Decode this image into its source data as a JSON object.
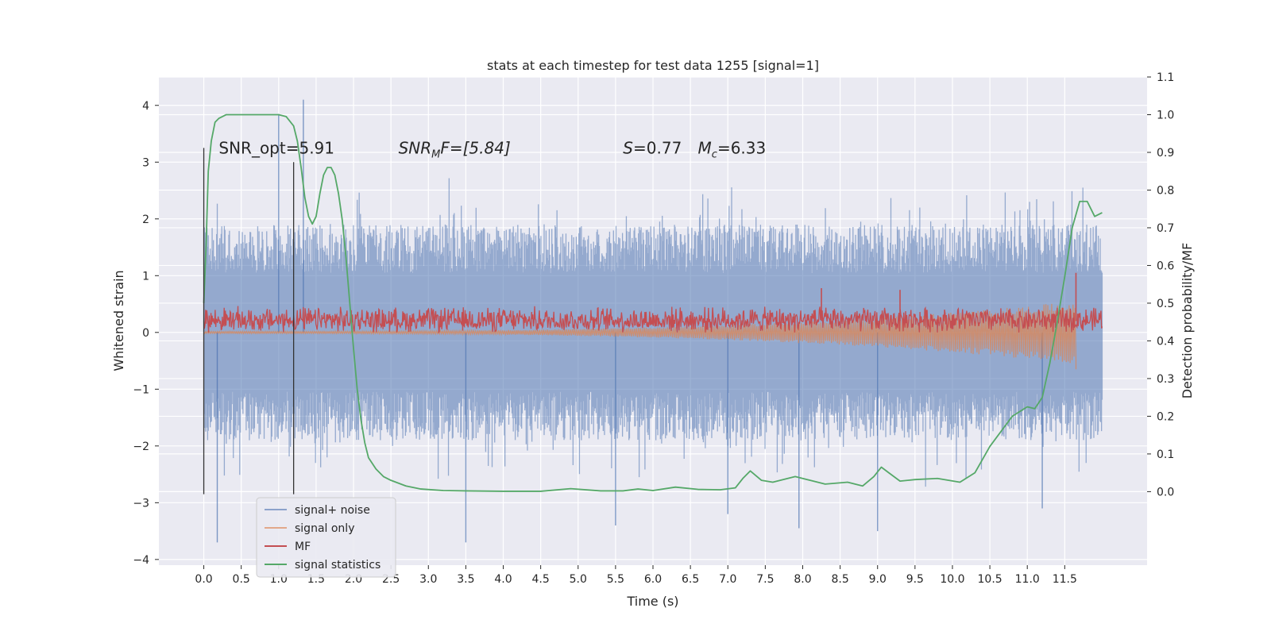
{
  "chart_data": {
    "type": "line",
    "title": "stats at each timestep for test data 1255 [signal=1]",
    "xlabel": "Time (s)",
    "ylabel": "Whitened strain",
    "y2label": "Detection probability/MF",
    "xlim": [
      -0.6,
      12.6
    ],
    "ylim": [
      -4.1,
      4.5
    ],
    "y2lim": [
      -0.195,
      1.1
    ],
    "x_ticks": [
      0.0,
      0.5,
      1.0,
      1.5,
      2.0,
      2.5,
      3.0,
      3.5,
      4.0,
      4.5,
      5.0,
      5.5,
      6.0,
      6.5,
      7.0,
      7.5,
      8.0,
      8.5,
      9.0,
      9.5,
      10.0,
      10.5,
      11.0,
      11.5
    ],
    "x_tick_labels": [
      "0.0",
      "0.5",
      "1.0",
      "1.5",
      "2.0",
      "2.5",
      "3.0",
      "3.5",
      "4.0",
      "4.5",
      "5.0",
      "5.5",
      "6.0",
      "6.5",
      "7.0",
      "7.5",
      "8.0",
      "8.5",
      "9.0",
      "9.5",
      "10.0",
      "10.5",
      "11.0",
      "11.5"
    ],
    "y_ticks": [
      4,
      3,
      2,
      1,
      0,
      -1,
      -2,
      -3,
      -4
    ],
    "y_tick_labels": [
      "4",
      "3",
      "2",
      "1",
      "0",
      "−1",
      "−2",
      "−3",
      "−4"
    ],
    "y2_ticks": [
      1.1,
      1.0,
      0.9,
      0.8,
      0.7,
      0.6,
      0.5,
      0.4,
      0.3,
      0.2,
      0.1,
      0.0
    ],
    "y2_tick_labels": [
      "1.1",
      "1.0",
      "0.9",
      "0.8",
      "0.7",
      "0.6",
      "0.5",
      "0.4",
      "0.3",
      "0.2",
      "0.1",
      "0.0"
    ],
    "grid": true,
    "legend_position": "lower-left",
    "colors": {
      "signal_noise": "#4c72b0",
      "signal_only": "#dd8452",
      "mf": "#c44e52",
      "statistics": "#55a868",
      "marker": "#333333"
    },
    "legend": [
      "signal+ noise",
      "signal only",
      "MF",
      "signal statistics"
    ],
    "annotations": [
      {
        "text": "SNR_opt=5.91",
        "x": 0.2,
        "y": 3.25
      },
      {
        "text": "SNR",
        "sub": "M",
        "rest": "F=[5.84]",
        "italic": true,
        "x": 2.6,
        "y": 3.25
      },
      {
        "text": "S",
        "rest": "=0.77",
        "x": 5.6,
        "y": 3.25
      },
      {
        "text": "M",
        "sub": "c",
        "rest": "=6.33",
        "x": 6.6,
        "y": 3.25
      }
    ],
    "vlines": [
      {
        "x": 0.0,
        "y": [
          -2.85,
          3.25
        ]
      },
      {
        "x": 1.2,
        "y": [
          -2.85,
          3.0
        ]
      }
    ],
    "series": [
      {
        "name": "signal+ noise",
        "kind": "noise_bars",
        "x_range": [
          0.0,
          12.0
        ],
        "typical_envelope": [
          -1.9,
          1.9
        ],
        "extremes": [
          {
            "x": 1.0,
            "y": 3.85
          },
          {
            "x": 1.33,
            "y": 4.1
          },
          {
            "x": 0.18,
            "y": -3.7
          },
          {
            "x": 3.5,
            "y": -3.7
          },
          {
            "x": 5.5,
            "y": -3.4
          },
          {
            "x": 7.0,
            "y": -3.2
          },
          {
            "x": 7.95,
            "y": -3.45
          },
          {
            "x": 9.0,
            "y": -3.5
          },
          {
            "x": 11.2,
            "y": -3.1
          }
        ]
      },
      {
        "name": "signal only",
        "kind": "chirp",
        "x_range": [
          0.0,
          11.65
        ],
        "amplitude_start": 0.02,
        "amplitude_end": 0.55,
        "final_dip": -0.65
      },
      {
        "name": "MF",
        "kind": "mf_band",
        "x_range": [
          0.0,
          12.0
        ],
        "baseline": 0.2,
        "spread": 0.35,
        "peaks": [
          {
            "x": 8.25,
            "y": 0.78
          },
          {
            "x": 9.3,
            "y": 0.75
          },
          {
            "x": 11.65,
            "y": 1.05
          }
        ]
      },
      {
        "name": "signal statistics",
        "axis": "y2",
        "x": [
          0.0,
          0.03,
          0.06,
          0.1,
          0.15,
          0.2,
          0.3,
          0.5,
          0.7,
          0.9,
          1.0,
          1.1,
          1.2,
          1.25,
          1.3,
          1.35,
          1.4,
          1.45,
          1.5,
          1.55,
          1.6,
          1.65,
          1.7,
          1.75,
          1.8,
          1.85,
          1.9,
          1.95,
          2.0,
          2.05,
          2.1,
          2.15,
          2.2,
          2.3,
          2.4,
          2.5,
          2.7,
          2.9,
          3.2,
          3.5,
          4.0,
          4.5,
          4.9,
          5.3,
          5.6,
          5.8,
          6.0,
          6.3,
          6.6,
          6.9,
          7.1,
          7.2,
          7.3,
          7.45,
          7.6,
          7.9,
          8.1,
          8.3,
          8.6,
          8.8,
          8.95,
          9.05,
          9.15,
          9.3,
          9.5,
          9.8,
          10.1,
          10.3,
          10.5,
          10.8,
          11.0,
          11.1,
          11.2,
          11.3,
          11.4,
          11.5,
          11.6,
          11.7,
          11.8,
          11.9,
          12.0
        ],
        "y": [
          0.5,
          0.65,
          0.85,
          0.93,
          0.98,
          0.99,
          1.0,
          1.0,
          1.0,
          1.0,
          1.0,
          0.995,
          0.97,
          0.93,
          0.86,
          0.78,
          0.73,
          0.71,
          0.73,
          0.79,
          0.84,
          0.86,
          0.86,
          0.84,
          0.79,
          0.72,
          0.62,
          0.5,
          0.38,
          0.27,
          0.19,
          0.13,
          0.09,
          0.06,
          0.04,
          0.03,
          0.015,
          0.007,
          0.003,
          0.002,
          0.001,
          0.001,
          0.008,
          0.002,
          0.002,
          0.007,
          0.003,
          0.012,
          0.006,
          0.005,
          0.01,
          0.035,
          0.055,
          0.03,
          0.025,
          0.04,
          0.03,
          0.02,
          0.025,
          0.015,
          0.04,
          0.065,
          0.05,
          0.028,
          0.032,
          0.035,
          0.025,
          0.05,
          0.12,
          0.2,
          0.225,
          0.22,
          0.25,
          0.34,
          0.45,
          0.57,
          0.7,
          0.77,
          0.77,
          0.73,
          0.74
        ]
      }
    ]
  }
}
